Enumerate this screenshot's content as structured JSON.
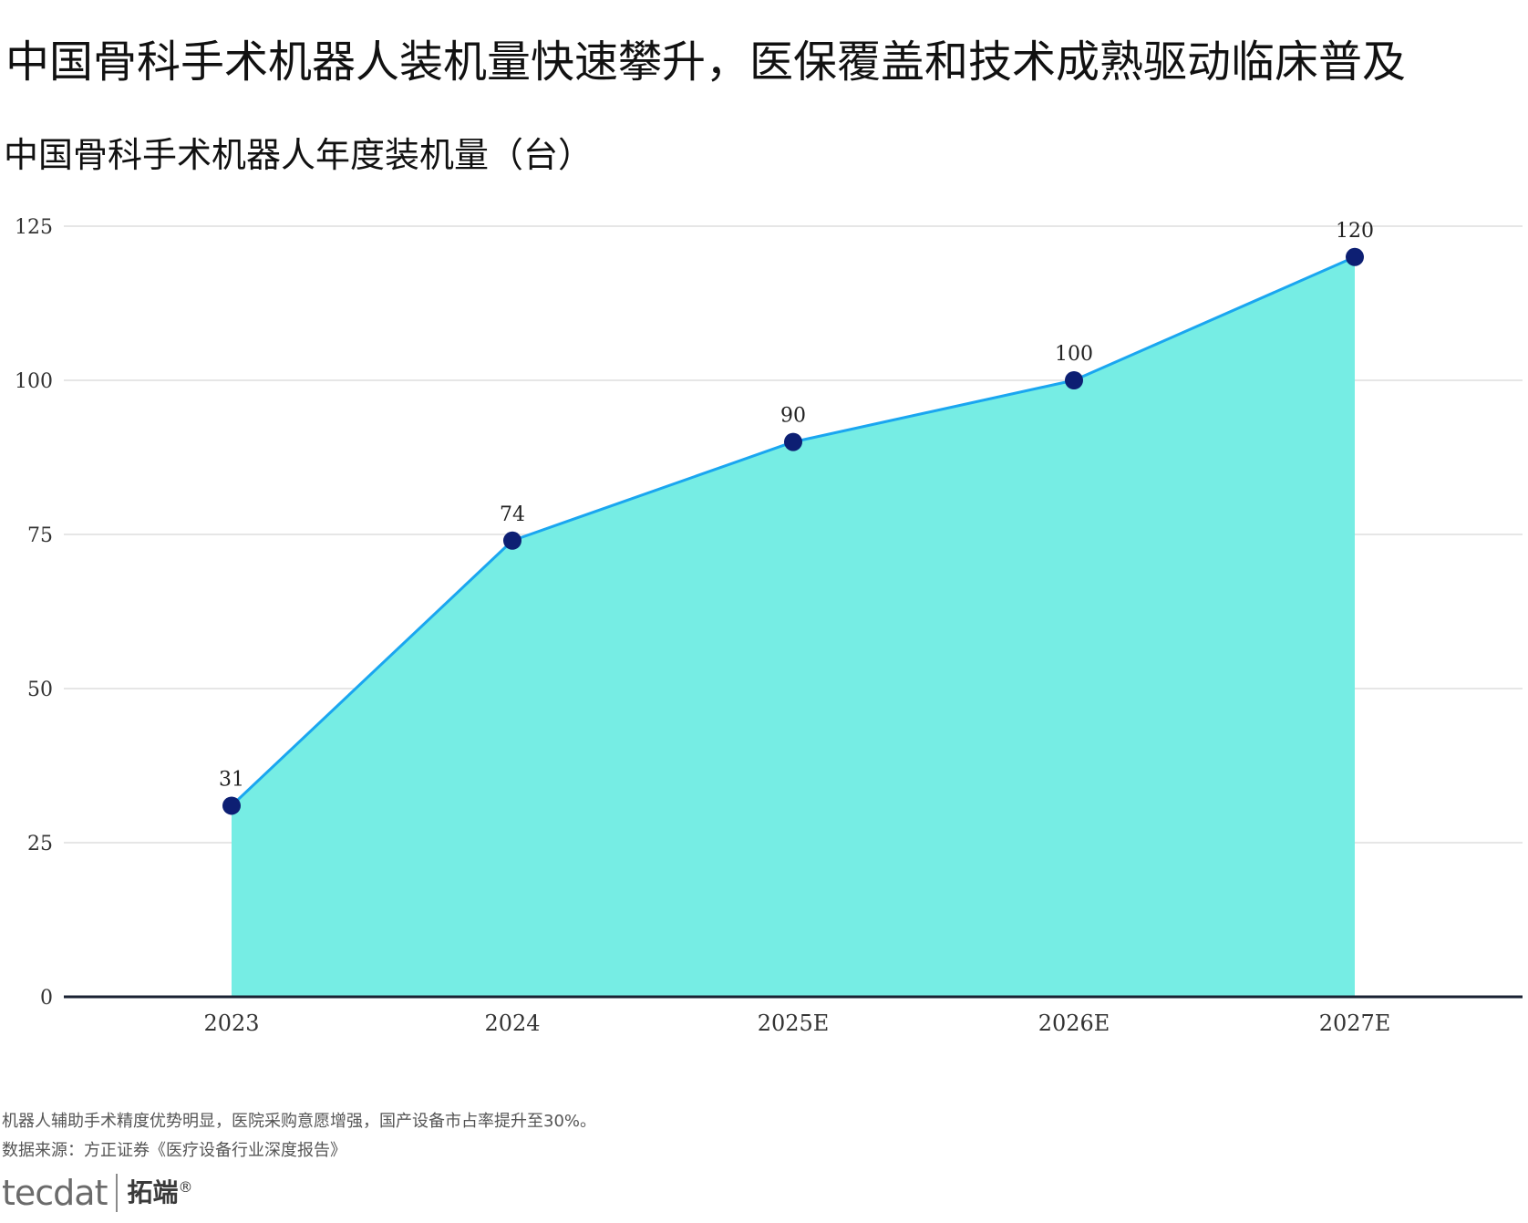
{
  "title": "中国骨科手术机器人装机量快速攀升，医保覆盖和技术成熟驱动临床普及",
  "subtitle": "中国骨科手术机器人年度装机量（台）",
  "note": "机器人辅助手术精度优势明显，医院采购意愿增强，国产设备市占率提升至30%。",
  "source": "数据来源：方正证券《医疗设备行业深度报告》",
  "logo": {
    "mark": "tecdat",
    "name": "拓端",
    "reg": "®"
  },
  "colors": {
    "area_fill": "#76ede4",
    "line": "#1aa6f0",
    "marker": "#0d1f73",
    "grid": "#e6e6e6",
    "axis": "#1a2233"
  },
  "chart_data": {
    "type": "area",
    "categories": [
      "2023",
      "2024",
      "2025E",
      "2026E",
      "2027E"
    ],
    "series": [
      {
        "values": [
          31,
          74,
          90,
          100,
          120
        ]
      }
    ],
    "data_labels": [
      "31",
      "74",
      "90",
      "100",
      "120"
    ],
    "ylim": [
      0,
      125
    ],
    "yticks": [
      0,
      25,
      50,
      75,
      100,
      125
    ],
    "ytick_labels": [
      "0",
      "25",
      "50",
      "75",
      "100",
      "125"
    ],
    "grid": true,
    "legend": "none",
    "markers": true
  }
}
